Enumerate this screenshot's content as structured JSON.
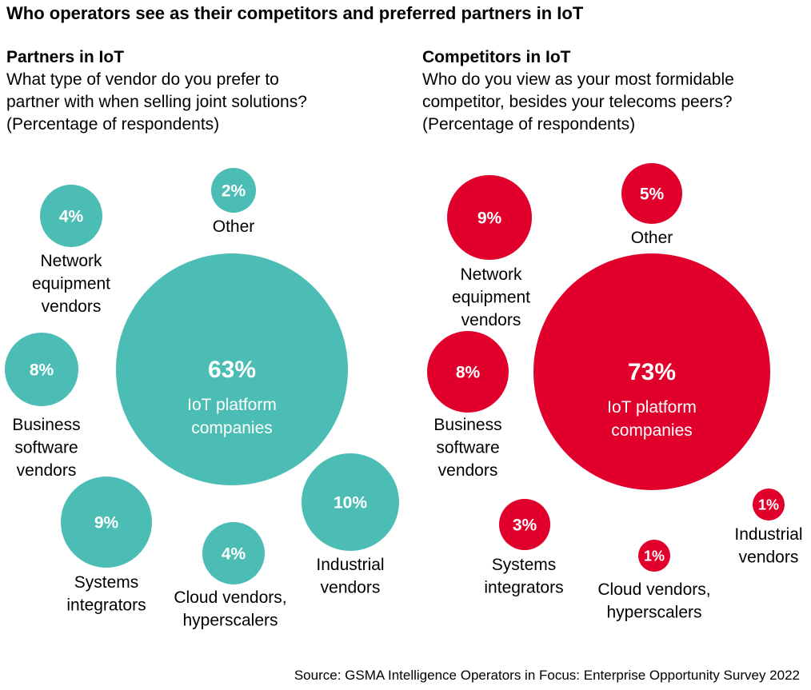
{
  "title": "Who operators see as their competitors and preferred partners in IoT",
  "source": "Source: GSMA Intelligence Operators in Focus: Enterprise Opportunity Survey 2022",
  "chart_data": [
    {
      "type": "bubble",
      "title": "Partners in IoT",
      "subtitle": [
        "What type of vendor do you prefer to",
        "partner with when selling joint solutions?",
        "(Percentage of respondents)"
      ],
      "color": "#4BBDB5",
      "points": [
        {
          "value": 2,
          "label": [
            "Other"
          ]
        },
        {
          "value": 4,
          "label": [
            "Network",
            "equipment",
            "vendors"
          ]
        },
        {
          "value": 63,
          "label": [
            "IoT platform",
            "companies"
          ]
        },
        {
          "value": 8,
          "label": [
            "Business",
            "software",
            "vendors"
          ]
        },
        {
          "value": 9,
          "label": [
            "Systems",
            "integrators"
          ]
        },
        {
          "value": 4,
          "label": [
            "Cloud vendors,",
            "hyperscalers"
          ]
        },
        {
          "value": 10,
          "label": [
            "Industrial",
            "vendors"
          ]
        }
      ]
    },
    {
      "type": "bubble",
      "title": "Competitors in IoT",
      "subtitle": [
        "Who do you view as your most formidable",
        "competitor, besides your telecoms peers?",
        "(Percentage of respondents)"
      ],
      "color": "#E0002B",
      "points": [
        {
          "value": 5,
          "label": [
            "Other"
          ]
        },
        {
          "value": 9,
          "label": [
            "Network",
            "equipment",
            "vendors"
          ]
        },
        {
          "value": 73,
          "label": [
            "IoT platform",
            "companies"
          ]
        },
        {
          "value": 8,
          "label": [
            "Business",
            "software",
            "vendors"
          ]
        },
        {
          "value": 3,
          "label": [
            "Systems",
            "integrators"
          ]
        },
        {
          "value": 1,
          "label": [
            "Cloud vendors,",
            "hyperscalers"
          ]
        },
        {
          "value": 1,
          "label": [
            "Industrial",
            "vendors"
          ]
        }
      ]
    }
  ]
}
